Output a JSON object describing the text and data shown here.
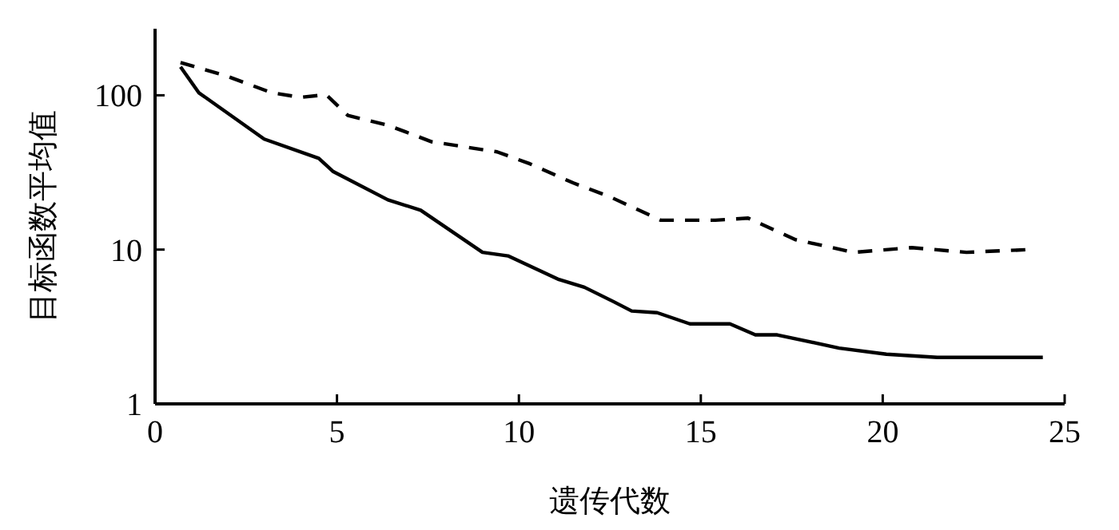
{
  "chart_data": {
    "type": "line",
    "xlabel": "遗传代数",
    "ylabel": "目标函数平均值",
    "log": true,
    "grid": false,
    "xlim": [
      0,
      25
    ],
    "ylim": [
      1,
      270
    ],
    "xticks": [
      0,
      5,
      10,
      15,
      20,
      25
    ],
    "yticks": [
      1,
      10,
      100
    ],
    "series": [
      {
        "color": "#000000",
        "line_style": "solid",
        "x": [
          0.7,
          1.2,
          3.0,
          4.5,
          4.9,
          6.4,
          7.3,
          9.0,
          9.7,
          11.1,
          11.8,
          12.6,
          13.1,
          13.8,
          14.7,
          15.8,
          16.5,
          17.1,
          18.8,
          20.1,
          21.5,
          22.9,
          24.4
        ],
        "values": [
          153,
          104,
          52,
          39,
          32,
          21,
          18,
          9.6,
          9.1,
          6.4,
          5.7,
          4.6,
          4.0,
          3.9,
          3.3,
          3.3,
          2.8,
          2.8,
          2.3,
          2.1,
          2.0,
          2.0,
          2.0
        ]
      },
      {
        "color": "#000000",
        "line_style": "dashed",
        "x": [
          0.7,
          1.9,
          3.2,
          4.0,
          4.7,
          5.3,
          6.4,
          7.6,
          9.4,
          10.3,
          11.5,
          12.5,
          13.9,
          15.4,
          16.3,
          17.6,
          19.2,
          20.8,
          22.3,
          24.0
        ],
        "values": [
          163,
          135,
          104,
          97,
          101,
          74,
          64,
          50,
          43,
          36,
          27,
          22,
          15.5,
          15.5,
          16,
          11.6,
          9.6,
          10.3,
          9.6,
          10
        ]
      }
    ]
  }
}
